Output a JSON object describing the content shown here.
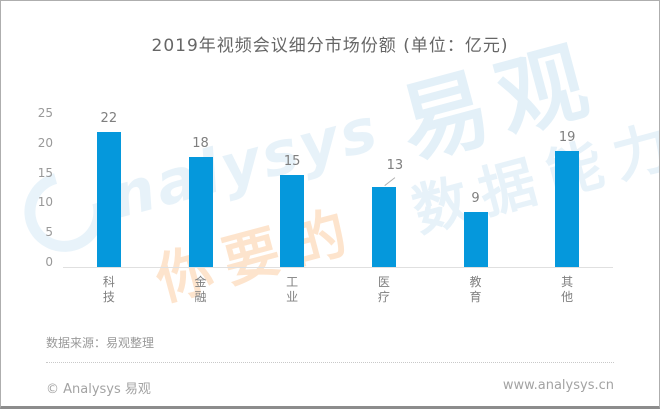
{
  "title": "2019年视频会议细分市场份额 (单位：亿元)",
  "chart_data": {
    "type": "bar",
    "categories": [
      "科技",
      "金融",
      "工业",
      "医疗",
      "教育",
      "其他"
    ],
    "values": [
      22,
      18,
      15,
      13,
      9,
      19
    ],
    "title": "2019年视频会议细分市场份额 (单位：亿元)",
    "xlabel": "",
    "ylabel": "",
    "ylim": [
      0,
      25
    ],
    "yticks": [
      "25",
      "20",
      "15",
      "10",
      "5",
      "0"
    ],
    "bar_color": "#0598dc",
    "grid": false,
    "legend": "none"
  },
  "watermark": {
    "brand_latin": "nalysys",
    "brand_cn": "易观",
    "slogan_orange": "你要的",
    "slogan_blue": "数据能力"
  },
  "source_note": "数据来源：易观整理",
  "footer": {
    "copyright": "© Analysys 易观",
    "website": "www.analysys.cn"
  },
  "colors": {
    "bar": "#0598dc",
    "title_text": "#666666",
    "axis_text": "#999999",
    "value_label": "#7f7f7f"
  }
}
